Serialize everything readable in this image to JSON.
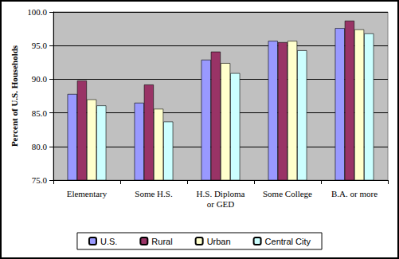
{
  "chart_data": {
    "type": "bar",
    "y_label": "Percent of U.S. Households",
    "categories": [
      "Elementary",
      "Some H.S.",
      "H.S. Diploma\nor GED",
      "Some College",
      "B.A. or more"
    ],
    "series": [
      {
        "name": "U.S.",
        "color": "#9999ff",
        "values": [
          87.8,
          86.5,
          92.9,
          95.7,
          97.6
        ]
      },
      {
        "name": "Rural",
        "color": "#993366",
        "values": [
          89.8,
          89.2,
          94.1,
          95.5,
          98.7
        ]
      },
      {
        "name": "Urban",
        "color": "#ffffcc",
        "values": [
          87.0,
          85.6,
          92.4,
          95.7,
          97.4
        ]
      },
      {
        "name": "Central City",
        "color": "#ccffff",
        "values": [
          86.1,
          83.7,
          90.9,
          94.3,
          96.8
        ]
      }
    ],
    "ylim": [
      75,
      100
    ],
    "yticks": [
      {
        "value": 75,
        "label": "75.0"
      },
      {
        "value": 80,
        "label": "80.0"
      },
      {
        "value": 85,
        "label": "85.0"
      },
      {
        "value": 90,
        "label": "90.0"
      },
      {
        "value": 95,
        "label": "95.0"
      },
      {
        "value": 100,
        "label": "100.0"
      }
    ],
    "grid": true,
    "legend": "bottom"
  }
}
